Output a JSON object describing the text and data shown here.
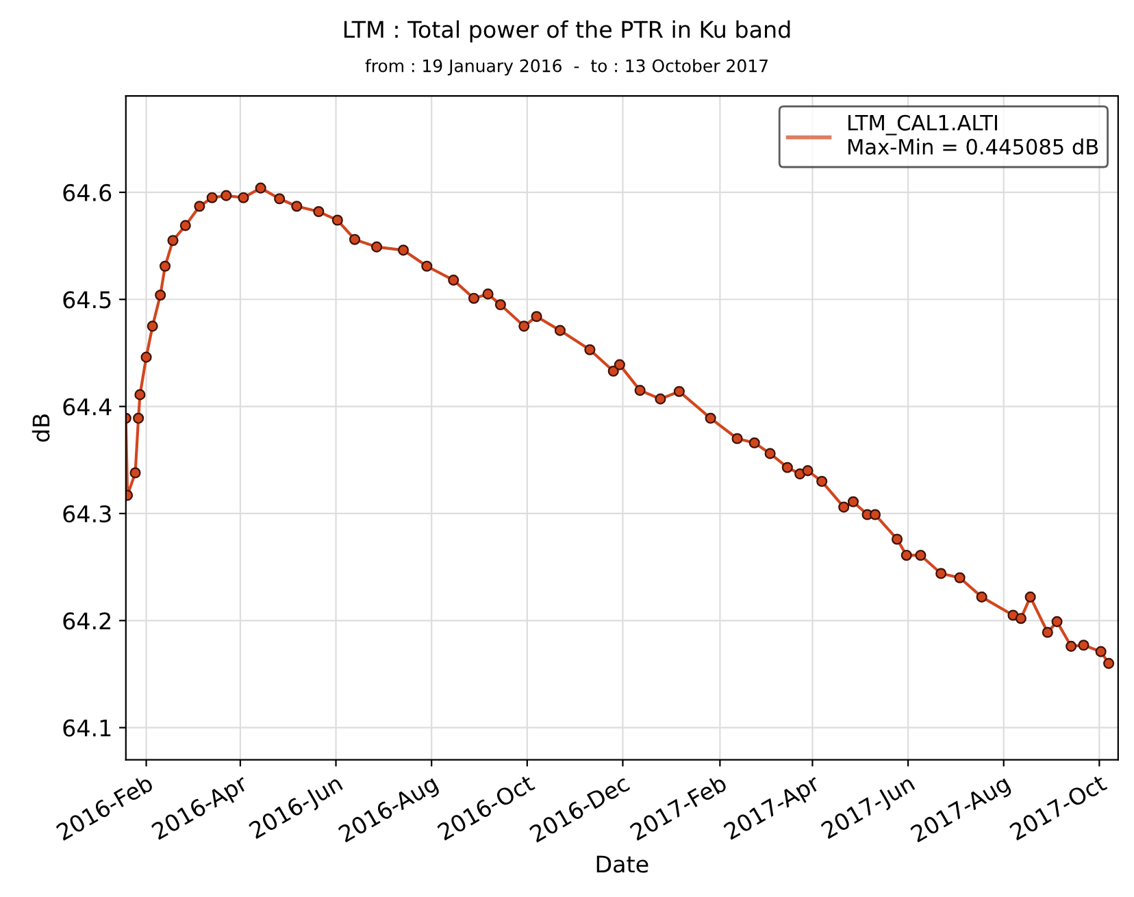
{
  "chart_data": {
    "type": "line",
    "title": "LTM : Total power of the PTR in Ku band",
    "subtitle": "from : 19 January 2016  -  to : 13 October 2017",
    "xlabel": "Date",
    "ylabel": "dB",
    "xlim": [
      "2016-01-19",
      "2017-10-13"
    ],
    "ylim": [
      64.07,
      64.69
    ],
    "xticks": [
      {
        "value": "2016-02-01",
        "label": "2016-Feb"
      },
      {
        "value": "2016-04-01",
        "label": "2016-Apr"
      },
      {
        "value": "2016-06-01",
        "label": "2016-Jun"
      },
      {
        "value": "2016-08-01",
        "label": "2016-Aug"
      },
      {
        "value": "2016-10-01",
        "label": "2016-Oct"
      },
      {
        "value": "2016-12-01",
        "label": "2016-Dec"
      },
      {
        "value": "2017-02-01",
        "label": "2017-Feb"
      },
      {
        "value": "2017-04-01",
        "label": "2017-Apr"
      },
      {
        "value": "2017-06-01",
        "label": "2017-Jun"
      },
      {
        "value": "2017-08-01",
        "label": "2017-Aug"
      },
      {
        "value": "2017-10-01",
        "label": "2017-Oct"
      }
    ],
    "yticks": [
      64.1,
      64.2,
      64.3,
      64.4,
      64.5,
      64.6
    ],
    "grid": true,
    "legend": "top right",
    "marker": "circle",
    "line_style": "solid",
    "series": [
      {
        "name": "LTM_CAL1.ALTI\nMax-Min = 0.445085 dB",
        "color": "#d2461e",
        "x": [
          "2016-01-19",
          "2016-01-20",
          "2016-01-25",
          "2016-01-27",
          "2016-01-28",
          "2016-02-01",
          "2016-02-05",
          "2016-02-10",
          "2016-02-13",
          "2016-02-18",
          "2016-02-26",
          "2016-03-06",
          "2016-03-14",
          "2016-03-23",
          "2016-04-03",
          "2016-04-14",
          "2016-04-26",
          "2016-05-07",
          "2016-05-21",
          "2016-06-02",
          "2016-06-13",
          "2016-06-27",
          "2016-07-14",
          "2016-07-29",
          "2016-08-15",
          "2016-08-28",
          "2016-09-06",
          "2016-09-14",
          "2016-09-29",
          "2016-10-07",
          "2016-10-22",
          "2016-11-10",
          "2016-11-25",
          "2016-11-29",
          "2016-12-12",
          "2016-12-25",
          "2017-01-06",
          "2017-01-26",
          "2017-02-12",
          "2017-02-23",
          "2017-03-05",
          "2017-03-16",
          "2017-03-24",
          "2017-03-29",
          "2017-04-07",
          "2017-04-21",
          "2017-04-27",
          "2017-05-06",
          "2017-05-11",
          "2017-05-25",
          "2017-05-31",
          "2017-06-09",
          "2017-06-22",
          "2017-07-04",
          "2017-07-18",
          "2017-08-07",
          "2017-08-12",
          "2017-08-18",
          "2017-08-29",
          "2017-09-04",
          "2017-09-13",
          "2017-09-21",
          "2017-10-02",
          "2017-10-07"
        ],
        "values": [
          64.389,
          64.317,
          64.338,
          64.389,
          64.411,
          64.446,
          64.475,
          64.504,
          64.531,
          64.555,
          64.569,
          64.587,
          64.595,
          64.597,
          64.595,
          64.604,
          64.594,
          64.587,
          64.582,
          64.574,
          64.556,
          64.549,
          64.546,
          64.531,
          64.518,
          64.501,
          64.505,
          64.495,
          64.475,
          64.484,
          64.471,
          64.453,
          64.433,
          64.439,
          64.415,
          64.407,
          64.414,
          64.389,
          64.37,
          64.366,
          64.356,
          64.343,
          64.337,
          64.34,
          64.33,
          64.306,
          64.311,
          64.299,
          64.299,
          64.276,
          64.261,
          64.261,
          64.244,
          64.24,
          64.222,
          64.205,
          64.202,
          64.222,
          64.189,
          64.199,
          64.176,
          64.177,
          64.171,
          64.16
        ]
      }
    ]
  }
}
